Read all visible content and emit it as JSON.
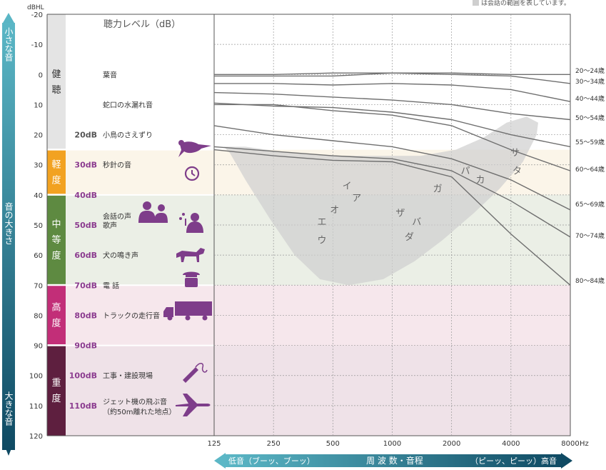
{
  "chart_data": {
    "type": "line",
    "title": "聴力レベル（dB）",
    "unit_top": "dBHL",
    "legend_note": "は会話の範囲を表しています。",
    "colors": {
      "axis_gradient_top": "#5bb7c6",
      "axis_gradient_bottom": "#0f4a63",
      "healthy": "#e4e4e4",
      "mild": "#f2a221",
      "moderate": "#5e8a41",
      "severe": "#c22e78",
      "profound": "#5e1f3f",
      "mild_band": "#fbf5e9",
      "moderate_band": "#ebefe6",
      "severe_band": "#f6e7ec",
      "profound_band": "#efe2e8",
      "speech_banana": "#cfcfcf",
      "curve": "#6f6f6f",
      "db_purple": "#8b3b8f",
      "icon_purple": "#7e3d8a"
    },
    "y_axis": {
      "min": -20,
      "max": 120,
      "reversed": true,
      "ticks": [
        "-20",
        "-10",
        "0",
        "10",
        "20",
        "30",
        "40",
        "50",
        "60",
        "70",
        "80",
        "90",
        "100",
        "110",
        "120"
      ]
    },
    "x_axis": {
      "scale": "log2",
      "ticks": [
        "125",
        "250",
        "500",
        "1000",
        "2000",
        "4000",
        "8000"
      ],
      "unit": "Hz"
    },
    "side_axis": {
      "top_label": "小さな音",
      "middle_label": "音の大きさ",
      "bottom_label": "大きな音"
    },
    "bottom_axis": {
      "left_label": "低音（ブーッ、ブーッ）",
      "center_label": "周 波 数・音程",
      "right_label": "（ピーッ、ピーッ）高音"
    },
    "categories": [
      {
        "label": "健聴",
        "from": -20,
        "to": 25
      },
      {
        "label": "軽度",
        "from": 25,
        "to": 40
      },
      {
        "label": "中等度",
        "from": 40,
        "to": 70
      },
      {
        "label": "高度",
        "from": 70,
        "to": 90
      },
      {
        "label": "重度",
        "from": 90,
        "to": 120
      }
    ],
    "sound_examples": [
      {
        "db": 0,
        "db_label": "",
        "name": "葉音",
        "icon": ""
      },
      {
        "db": 10,
        "db_label": "",
        "name": "蛇口の水漏れ音",
        "icon": ""
      },
      {
        "db": 20,
        "db_label": "20dB",
        "name": "小鳥のさえずり",
        "icon": "bird-icon"
      },
      {
        "db": 30,
        "db_label": "30dB",
        "name": "秒針の音",
        "icon": "clock-icon"
      },
      {
        "db": 40,
        "db_label": "40dB",
        "name": "",
        "icon": ""
      },
      {
        "db": 47,
        "db_label": "",
        "name": "会話の声",
        "icon": "conversation-icon"
      },
      {
        "db": 50,
        "db_label": "50dB",
        "name": "歌声",
        "icon": "singer-icon"
      },
      {
        "db": 60,
        "db_label": "60dB",
        "name": "犬の鳴き声",
        "icon": "dog-icon"
      },
      {
        "db": 70,
        "db_label": "70dB",
        "name": "電 話",
        "icon": "telephone-icon"
      },
      {
        "db": 80,
        "db_label": "80dB",
        "name": "トラックの走行音",
        "icon": "truck-icon"
      },
      {
        "db": 90,
        "db_label": "90dB",
        "name": "",
        "icon": ""
      },
      {
        "db": 100,
        "db_label": "100dB",
        "name": "工事・建設現場",
        "icon": "drill-icon"
      },
      {
        "db": 110,
        "db_label": "110dB",
        "name": "ジェット機の飛ぶ音",
        "name2": "（約50m離れた地点）",
        "icon": "jet-icon"
      }
    ],
    "phonemes": [
      {
        "label": "エ",
        "freq": 440,
        "db": 50
      },
      {
        "label": "ウ",
        "freq": 440,
        "db": 56
      },
      {
        "label": "オ",
        "freq": 510,
        "db": 46
      },
      {
        "label": "イ",
        "freq": 590,
        "db": 38
      },
      {
        "label": "ア",
        "freq": 660,
        "db": 42
      },
      {
        "label": "ザ",
        "freq": 1100,
        "db": 47
      },
      {
        "label": "ダ",
        "freq": 1220,
        "db": 55
      },
      {
        "label": "バ",
        "freq": 1330,
        "db": 50
      },
      {
        "label": "ガ",
        "freq": 1700,
        "db": 39
      },
      {
        "label": "パ",
        "freq": 2350,
        "db": 33
      },
      {
        "label": "カ",
        "freq": 2800,
        "db": 36
      },
      {
        "label": "サ",
        "freq": 4200,
        "db": 27
      },
      {
        "label": "タ",
        "freq": 4300,
        "db": 33
      }
    ],
    "series": [
      {
        "name": "20〜24歳",
        "x": [
          125,
          250,
          500,
          1000,
          2000,
          4000,
          8000
        ],
        "values": [
          0,
          0,
          -0.5,
          -0.5,
          -0.5,
          0,
          0
        ]
      },
      {
        "name": "30〜34歳",
        "x": [
          125,
          250,
          500,
          1000,
          2000,
          4000,
          8000
        ],
        "values": [
          0.5,
          0.5,
          0.5,
          -0.5,
          0,
          0.5,
          3
        ]
      },
      {
        "name": "40〜44歳",
        "x": [
          125,
          250,
          500,
          1000,
          2000,
          4000,
          8000
        ],
        "values": [
          3,
          3,
          3.5,
          3,
          3.5,
          5,
          9
        ]
      },
      {
        "name": "50〜54歳",
        "x": [
          125,
          250,
          500,
          1000,
          2000,
          4000,
          8000
        ],
        "values": [
          6,
          6.5,
          7.5,
          8.5,
          10,
          13,
          15
        ]
      },
      {
        "name": "55〜59歳",
        "x": [
          125,
          250,
          500,
          1000,
          2000,
          4000,
          8000
        ],
        "values": [
          9.5,
          10.5,
          11,
          12.5,
          15,
          20,
          24
        ]
      },
      {
        "name": "60〜64歳",
        "x": [
          125,
          250,
          500,
          1000,
          2000,
          4000,
          8000
        ],
        "values": [
          10,
          10,
          12,
          13.5,
          17,
          25,
          32
        ]
      },
      {
        "name": "65〜69歳",
        "x": [
          125,
          250,
          500,
          1000,
          2000,
          4000,
          8000
        ],
        "values": [
          17,
          20,
          22,
          24,
          28,
          35,
          45
        ]
      },
      {
        "name": "70〜74歳",
        "x": [
          125,
          250,
          500,
          1000,
          2000,
          4000,
          8000
        ],
        "values": [
          24,
          25.5,
          27,
          28,
          32,
          42,
          54
        ]
      },
      {
        "name": "80〜84歳",
        "x": [
          125,
          250,
          500,
          1000,
          2000,
          4000,
          8000
        ],
        "values": [
          25,
          27,
          28.5,
          29,
          34,
          53,
          70
        ]
      }
    ]
  }
}
